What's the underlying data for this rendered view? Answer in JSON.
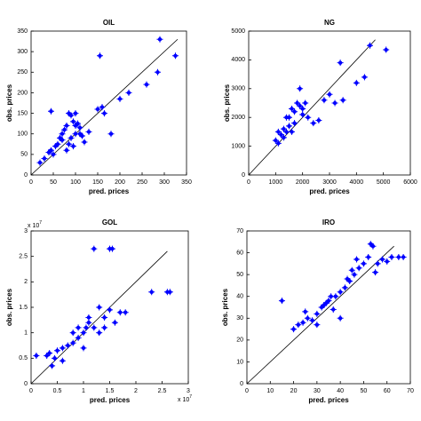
{
  "chart_data": [
    {
      "type": "scatter",
      "title": "OIL",
      "x_label": "pred. prices",
      "y_label": "obs. prices",
      "color": "#0000ff",
      "xlim": [
        0,
        350
      ],
      "ylim": [
        0,
        350
      ],
      "xticks": [
        0,
        50,
        100,
        150,
        200,
        250,
        300,
        350
      ],
      "yticks": [
        0,
        50,
        100,
        150,
        200,
        250,
        300,
        350
      ],
      "diagonal": {
        "x": [
          0,
          330
        ],
        "y": [
          0,
          330
        ]
      },
      "x": [
        20,
        30,
        40,
        45,
        50,
        55,
        60,
        65,
        70,
        75,
        80,
        85,
        90,
        95,
        100,
        105,
        110,
        115,
        120,
        85,
        80,
        90,
        95,
        100,
        110,
        45,
        155,
        160,
        165,
        180,
        200,
        220,
        260,
        285,
        290,
        325,
        100,
        70,
        130,
        150
      ],
      "y": [
        30,
        40,
        55,
        60,
        50,
        70,
        75,
        90,
        100,
        110,
        120,
        150,
        145,
        130,
        150,
        125,
        100,
        95,
        80,
        75,
        60,
        90,
        70,
        100,
        115,
        155,
        290,
        165,
        150,
        100,
        185,
        200,
        220,
        250,
        330,
        290,
        120,
        85,
        105,
        160
      ]
    },
    {
      "type": "scatter",
      "title": "NG",
      "x_label": "pred. prices",
      "y_label": "obs. prices",
      "color": "#0000ff",
      "xlim": [
        0,
        6000
      ],
      "ylim": [
        0,
        5000
      ],
      "xticks": [
        0,
        1000,
        2000,
        3000,
        4000,
        5000,
        6000
      ],
      "yticks": [
        0,
        1000,
        2000,
        3000,
        4000,
        5000
      ],
      "diagonal": {
        "x": [
          0,
          4700
        ],
        "y": [
          0,
          4700
        ]
      },
      "x": [
        1000,
        1100,
        1200,
        1300,
        1400,
        1500,
        1600,
        1700,
        1800,
        1900,
        2000,
        2100,
        2200,
        1300,
        1500,
        1700,
        2400,
        2600,
        2800,
        3000,
        3200,
        3400,
        3500,
        4000,
        4300,
        4500,
        5100,
        1900,
        1400,
        1600,
        1100,
        2000
      ],
      "y": [
        1200,
        1100,
        1400,
        1600,
        1500,
        2000,
        2300,
        2200,
        2500,
        2400,
        2100,
        2500,
        2000,
        1300,
        1700,
        1800,
        1800,
        1900,
        2600,
        2800,
        2500,
        3900,
        2600,
        3200,
        3400,
        4500,
        4350,
        3000,
        2000,
        1500,
        1500,
        2300
      ]
    },
    {
      "type": "scatter",
      "title": "GOL",
      "x_label": "pred. prices",
      "y_label": "obs. prices",
      "color": "#0000ff",
      "scale_base": "x 10",
      "scale_exponent": "7",
      "xlim": [
        0,
        3
      ],
      "ylim": [
        0,
        3
      ],
      "xticks": [
        0,
        0.5,
        1,
        1.5,
        2,
        2.5,
        3
      ],
      "yticks": [
        0,
        0.5,
        1,
        1.5,
        2,
        2.5,
        3
      ],
      "diagonal": {
        "x": [
          0,
          2.6
        ],
        "y": [
          0,
          2.6
        ]
      },
      "x": [
        0.1,
        0.3,
        0.35,
        0.4,
        0.45,
        0.5,
        0.6,
        0.7,
        0.8,
        0.9,
        1.0,
        1.05,
        1.1,
        1.2,
        1.3,
        1.4,
        1.5,
        1.6,
        1.7,
        1.8,
        1.2,
        1.5,
        1.55,
        2.3,
        2.6,
        2.65,
        0.8,
        1.0,
        0.9,
        1.4,
        1.1,
        0.6,
        1.3
      ],
      "y": [
        0.55,
        0.55,
        0.6,
        0.35,
        0.5,
        0.65,
        0.7,
        0.75,
        0.8,
        0.9,
        1.0,
        1.1,
        1.2,
        1.1,
        1.0,
        1.3,
        1.45,
        1.2,
        1.4,
        1.4,
        2.65,
        2.65,
        2.65,
        1.8,
        1.8,
        1.8,
        1.0,
        0.7,
        1.1,
        1.1,
        1.3,
        0.45,
        1.5
      ]
    },
    {
      "type": "scatter",
      "title": "IRO",
      "x_label": "pred. prices",
      "y_label": "obs. prices",
      "color": "#0000ff",
      "xlim": [
        0,
        70
      ],
      "ylim": [
        0,
        70
      ],
      "xticks": [
        0,
        10,
        20,
        30,
        40,
        50,
        60,
        70
      ],
      "yticks": [
        0,
        10,
        20,
        30,
        40,
        50,
        60,
        70
      ],
      "diagonal": {
        "x": [
          0,
          63
        ],
        "y": [
          0,
          63
        ]
      },
      "x": [
        15,
        20,
        22,
        24,
        25,
        26,
        28,
        30,
        32,
        33,
        34,
        35,
        36,
        37,
        38,
        40,
        42,
        43,
        44,
        45,
        46,
        48,
        50,
        52,
        53,
        55,
        56,
        58,
        60,
        62,
        65,
        67,
        40,
        30,
        47,
        54
      ],
      "y": [
        38,
        25,
        27,
        28,
        33,
        30,
        29,
        32,
        35,
        36,
        37,
        38,
        40,
        34,
        40,
        42,
        44,
        48,
        47,
        52,
        50,
        53,
        55,
        58,
        64,
        51,
        55,
        57,
        56,
        58,
        58,
        58,
        30,
        27,
        57,
        63
      ]
    }
  ]
}
